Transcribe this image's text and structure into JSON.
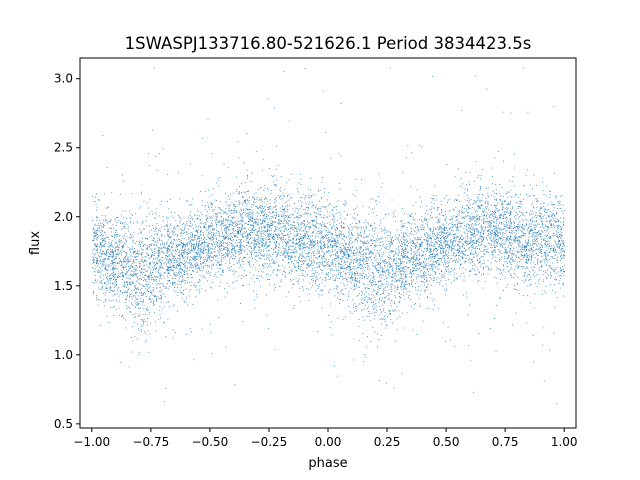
{
  "chart_data": {
    "type": "scatter",
    "title": "1SWASPJ133716.80-521626.1 Period 3834423.5s",
    "xlabel": "phase",
    "ylabel": "flux",
    "xlim": [
      -1.05,
      1.05
    ],
    "ylim": [
      0.47,
      3.15
    ],
    "xticks": [
      -1.0,
      -0.75,
      -0.5,
      -0.25,
      0.0,
      0.25,
      0.5,
      0.75,
      1.0
    ],
    "xtick_labels": [
      "−1.00",
      "−0.75",
      "−0.50",
      "−0.25",
      "0.00",
      "0.25",
      "0.50",
      "0.75",
      "1.00"
    ],
    "yticks": [
      0.5,
      1.0,
      1.5,
      2.0,
      2.5,
      3.0
    ],
    "ytick_labels": [
      "0.5",
      "1.0",
      "1.5",
      "2.0",
      "2.5",
      "3.0"
    ],
    "grid": false,
    "legend": "none",
    "marker_color": "#1f77b4",
    "series": [
      {
        "x": [
          -1.0,
          -0.95,
          -0.9,
          -0.85,
          -0.8,
          -0.75,
          -0.7,
          -0.65,
          -0.6,
          -0.55,
          -0.5,
          -0.45,
          -0.4,
          -0.35,
          -0.3,
          -0.25,
          -0.2,
          -0.15,
          -0.1,
          -0.05,
          0.0,
          0.05,
          0.1,
          0.15,
          0.2,
          0.25,
          0.3,
          0.35,
          0.4,
          0.45,
          0.5,
          0.55,
          0.6,
          0.65,
          0.7,
          0.75,
          0.8,
          0.85,
          0.9,
          0.95,
          1.0
        ],
        "y_center": [
          1.79,
          1.74,
          1.67,
          1.62,
          1.58,
          1.61,
          1.67,
          1.72,
          1.74,
          1.77,
          1.82,
          1.86,
          1.88,
          1.9,
          1.92,
          1.9,
          1.87,
          1.85,
          1.83,
          1.82,
          1.8,
          1.76,
          1.7,
          1.64,
          1.6,
          1.61,
          1.66,
          1.72,
          1.74,
          1.77,
          1.8,
          1.84,
          1.87,
          1.89,
          1.91,
          1.89,
          1.86,
          1.84,
          1.83,
          1.82,
          1.8
        ],
        "y_spread": [
          0.16,
          0.16,
          0.16,
          0.18,
          0.22,
          0.2,
          0.16,
          0.15,
          0.15,
          0.15,
          0.16,
          0.16,
          0.16,
          0.16,
          0.16,
          0.17,
          0.17,
          0.17,
          0.16,
          0.16,
          0.16,
          0.16,
          0.17,
          0.2,
          0.22,
          0.2,
          0.17,
          0.16,
          0.16,
          0.16,
          0.16,
          0.16,
          0.16,
          0.16,
          0.16,
          0.17,
          0.17,
          0.16,
          0.16,
          0.16,
          0.16
        ]
      }
    ]
  }
}
